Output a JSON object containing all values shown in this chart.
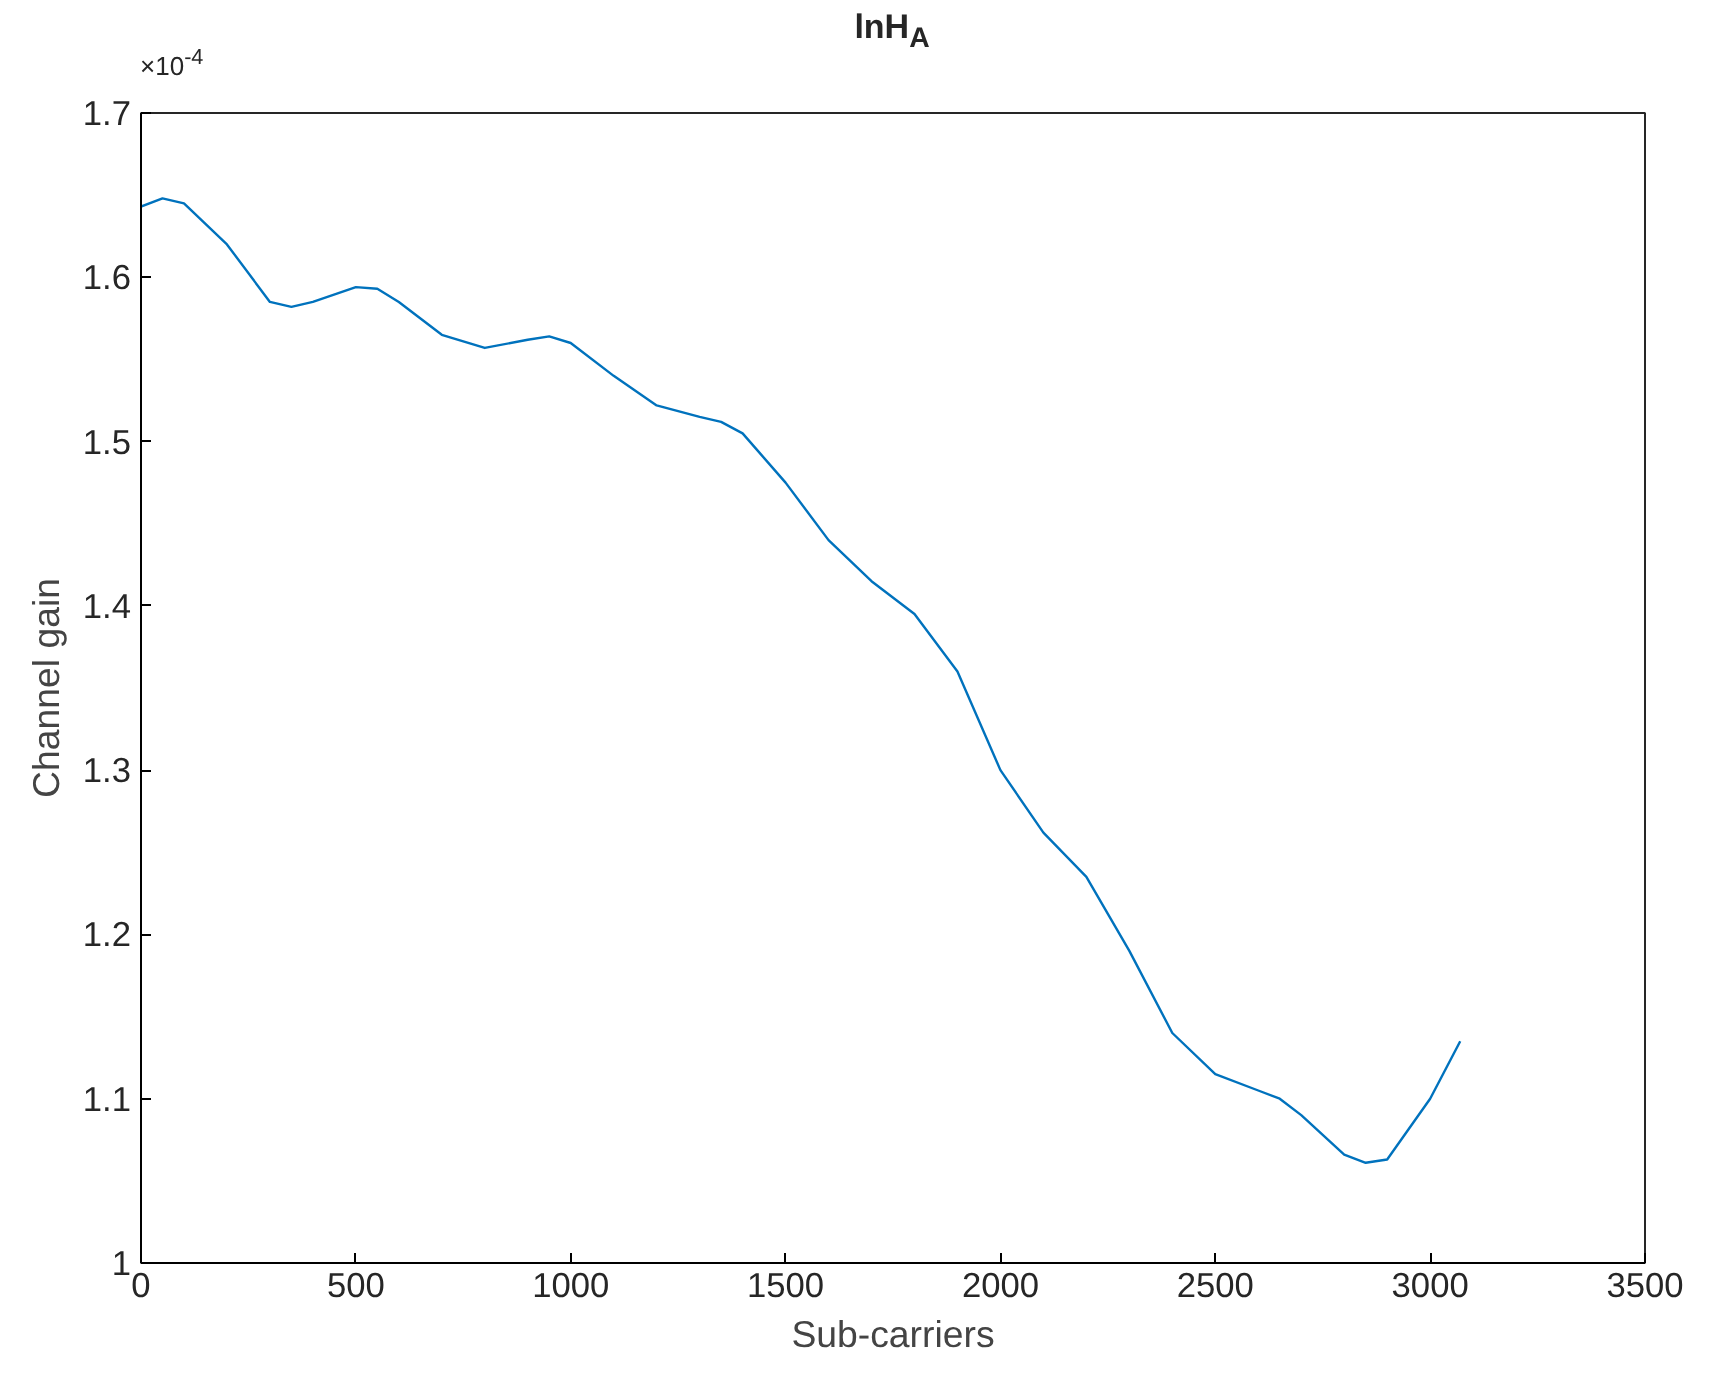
{
  "chart_data": {
    "type": "line",
    "title": "lnH$_{A}$",
    "xlabel": "Sub-carriers",
    "ylabel": "Channel gain",
    "annotations": [
      "×10$^{-4}$"
    ],
    "xlim": [
      0,
      3500
    ],
    "xticks": [
      0,
      500,
      1000,
      1500,
      2000,
      2500,
      3000,
      3500
    ],
    "ylim": [
      1,
      1.7
    ],
    "yticks": [
      1,
      1.1,
      1.2,
      1.3,
      1.4,
      1.5,
      1.6,
      1.7
    ],
    "grid": false,
    "marker": "none",
    "line_style": "solid",
    "series": [
      {
        "color": "#0072bd",
        "x": [
          0,
          50,
          100,
          200,
          300,
          350,
          400,
          500,
          550,
          600,
          700,
          800,
          900,
          950,
          1000,
          1100,
          1200,
          1300,
          1350,
          1400,
          1500,
          1600,
          1700,
          1800,
          1900,
          2000,
          2100,
          2200,
          2300,
          2400,
          2500,
          2600,
          2650,
          2700,
          2800,
          2850,
          2900,
          3000,
          3070
        ],
        "values": [
          1.643,
          1.648,
          1.645,
          1.62,
          1.585,
          1.582,
          1.585,
          1.594,
          1.593,
          1.585,
          1.565,
          1.557,
          1.562,
          1.564,
          1.56,
          1.54,
          1.522,
          1.515,
          1.512,
          1.505,
          1.475,
          1.44,
          1.415,
          1.395,
          1.36,
          1.3,
          1.262,
          1.235,
          1.19,
          1.14,
          1.115,
          1.105,
          1.1,
          1.09,
          1.066,
          1.061,
          1.063,
          1.1,
          1.135
        ]
      }
    ]
  }
}
